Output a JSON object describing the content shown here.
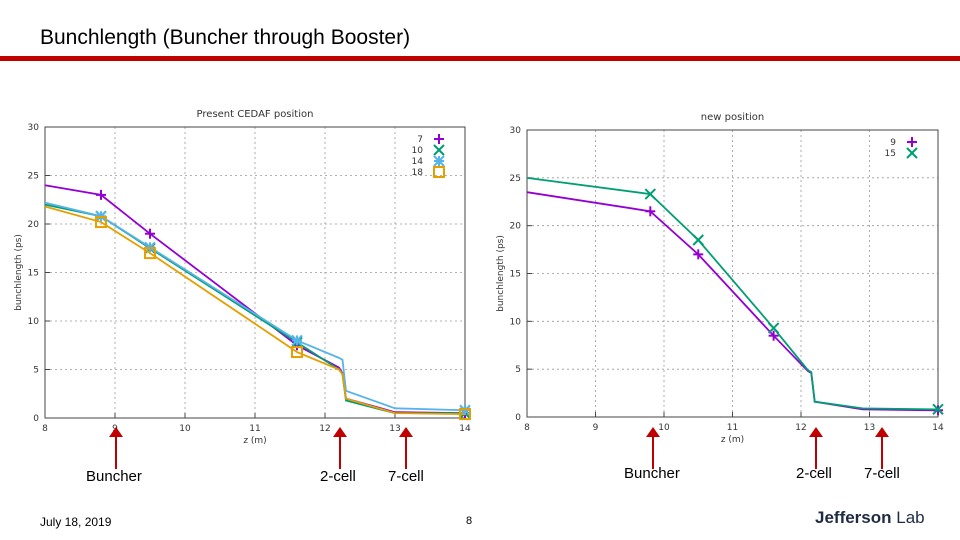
{
  "slide": {
    "title": "Bunchlength (Buncher through Booster)",
    "date": "July 18, 2019",
    "page": "8",
    "logo_text": "Jefferson",
    "logo_lab": "Lab",
    "accent_color": "#c00000"
  },
  "markers": {
    "buncher": "Buncher",
    "two_cell": "2-cell",
    "seven_cell": "7-cell"
  },
  "chart_data": [
    {
      "type": "line",
      "title": "Present CEDAF position",
      "xlabel": "z (m)",
      "ylabel": "bunchlength (ps)",
      "xlim": [
        8,
        14
      ],
      "ylim": [
        0,
        30
      ],
      "xticks": [
        8,
        9,
        10,
        11,
        12,
        13,
        14
      ],
      "yticks": [
        0,
        5,
        10,
        15,
        20,
        25,
        30
      ],
      "grid": true,
      "legend_position": "top-right",
      "series": [
        {
          "name": "7",
          "color": "#9400d3",
          "marker": "plus",
          "x": [
            8.0,
            8.8,
            9.5,
            11.6,
            12.2,
            12.25,
            12.3,
            13.0,
            14.0
          ],
          "y": [
            24.0,
            23.0,
            19.0,
            7.5,
            5.2,
            4.6,
            2.0,
            0.6,
            0.5
          ],
          "mx": [
            8.8,
            9.5,
            11.6,
            14.0
          ],
          "my": [
            23.0,
            19.0,
            7.5,
            0.5
          ]
        },
        {
          "name": "10",
          "color": "#009e73",
          "marker": "x",
          "x": [
            8.0,
            8.8,
            9.5,
            11.6,
            12.2,
            12.25,
            12.3,
            13.0,
            14.0
          ],
          "y": [
            22.0,
            20.8,
            17.5,
            7.8,
            5.0,
            4.5,
            1.8,
            0.5,
            0.5
          ],
          "mx": [
            8.8,
            9.5,
            11.6,
            14.0
          ],
          "my": [
            20.8,
            17.5,
            7.8,
            0.5
          ]
        },
        {
          "name": "14",
          "color": "#56b4e9",
          "marker": "star",
          "x": [
            8.0,
            8.8,
            9.5,
            11.6,
            12.2,
            12.25,
            12.3,
            13.0,
            14.0
          ],
          "y": [
            22.2,
            20.8,
            17.6,
            8.0,
            6.2,
            6.0,
            2.8,
            1.0,
            0.8
          ],
          "mx": [
            8.8,
            9.5,
            11.6,
            14.0
          ],
          "my": [
            20.8,
            17.6,
            8.0,
            0.8
          ]
        },
        {
          "name": "18",
          "color": "#e69f00",
          "marker": "square",
          "x": [
            8.0,
            8.8,
            9.5,
            11.6,
            12.2,
            12.25,
            12.3,
            13.0,
            14.0
          ],
          "y": [
            21.8,
            20.2,
            17.0,
            6.8,
            5.0,
            4.5,
            2.0,
            0.5,
            0.4
          ],
          "mx": [
            8.8,
            9.5,
            11.6,
            14.0
          ],
          "my": [
            20.2,
            17.0,
            6.8,
            0.4
          ]
        }
      ]
    },
    {
      "type": "line",
      "title": "new position",
      "xlabel": "z (m)",
      "ylabel": "bunchlength (ps)",
      "xlim": [
        8,
        14
      ],
      "ylim": [
        0,
        30
      ],
      "xticks": [
        8,
        9,
        10,
        11,
        12,
        13,
        14
      ],
      "yticks": [
        0,
        5,
        10,
        15,
        20,
        25,
        30
      ],
      "grid": true,
      "legend_position": "top-right",
      "series": [
        {
          "name": "9",
          "color": "#9400d3",
          "marker": "plus",
          "x": [
            8.0,
            9.8,
            10.5,
            11.6,
            12.1,
            12.15,
            12.2,
            12.9,
            14.0
          ],
          "y": [
            23.5,
            21.5,
            17.0,
            8.5,
            4.8,
            4.6,
            1.6,
            0.8,
            0.7
          ],
          "mx": [
            9.8,
            10.5,
            11.6,
            14.0
          ],
          "my": [
            21.5,
            17.0,
            8.5,
            0.7
          ]
        },
        {
          "name": "15",
          "color": "#009e73",
          "marker": "x",
          "x": [
            8.0,
            9.8,
            10.5,
            11.6,
            12.1,
            12.15,
            12.2,
            12.9,
            14.0
          ],
          "y": [
            25.0,
            23.3,
            18.5,
            9.3,
            4.9,
            4.7,
            1.6,
            0.9,
            0.8
          ],
          "mx": [
            9.8,
            10.5,
            11.6,
            14.0
          ],
          "my": [
            23.3,
            18.5,
            9.3,
            0.8
          ]
        }
      ]
    }
  ]
}
